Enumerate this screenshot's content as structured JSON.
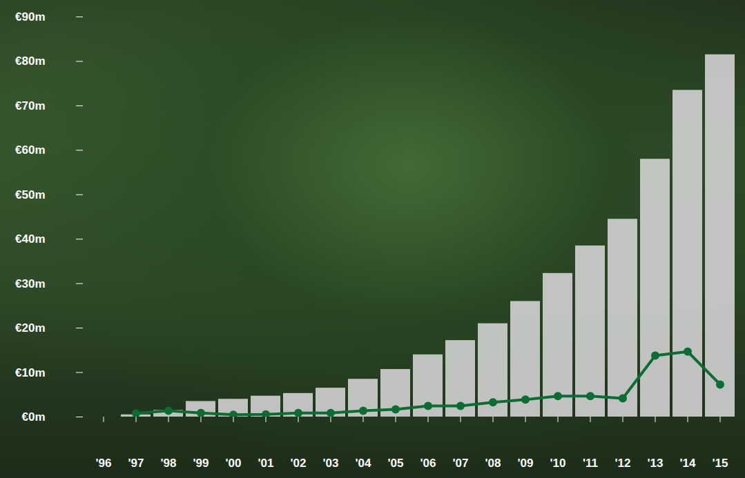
{
  "chart_data": {
    "type": "bar",
    "categories": [
      "'96",
      "'97",
      "'98",
      "'99",
      "'00",
      "'01",
      "'02",
      "'03",
      "'04",
      "'05",
      "'06",
      "'07",
      "'08",
      "'09",
      "'10",
      "'11",
      "'12",
      "'13",
      "'14",
      "'15"
    ],
    "series": [
      {
        "type": "bar",
        "color": "#d6d6d6",
        "values": [
          null,
          0.5,
          1.5,
          3.5,
          4.0,
          4.7,
          5.3,
          6.5,
          8.5,
          10.7,
          14.0,
          17.2,
          21.0,
          26.0,
          32.3,
          38.5,
          44.5,
          58.0,
          73.5,
          81.5
        ]
      },
      {
        "type": "line",
        "color": "#0d6b34",
        "marker": "circle",
        "values": [
          null,
          0.8,
          1.4,
          0.9,
          0.5,
          0.6,
          0.9,
          0.9,
          1.4,
          1.7,
          2.5,
          2.5,
          3.3,
          3.9,
          4.7,
          4.7,
          4.2,
          13.8,
          14.7,
          7.3
        ]
      }
    ],
    "ylim": [
      0,
      90
    ],
    "yticks": [
      {
        "value": 0,
        "label": "€0m"
      },
      {
        "value": 10,
        "label": "€10m"
      },
      {
        "value": 20,
        "label": "€20m"
      },
      {
        "value": 30,
        "label": "€30m"
      },
      {
        "value": 40,
        "label": "€40m"
      },
      {
        "value": 50,
        "label": "€50m"
      },
      {
        "value": 60,
        "label": "€60m"
      },
      {
        "value": 70,
        "label": "€70m"
      },
      {
        "value": 80,
        "label": "€80m"
      },
      {
        "value": 90,
        "label": "€90m"
      }
    ],
    "grid": false
  }
}
